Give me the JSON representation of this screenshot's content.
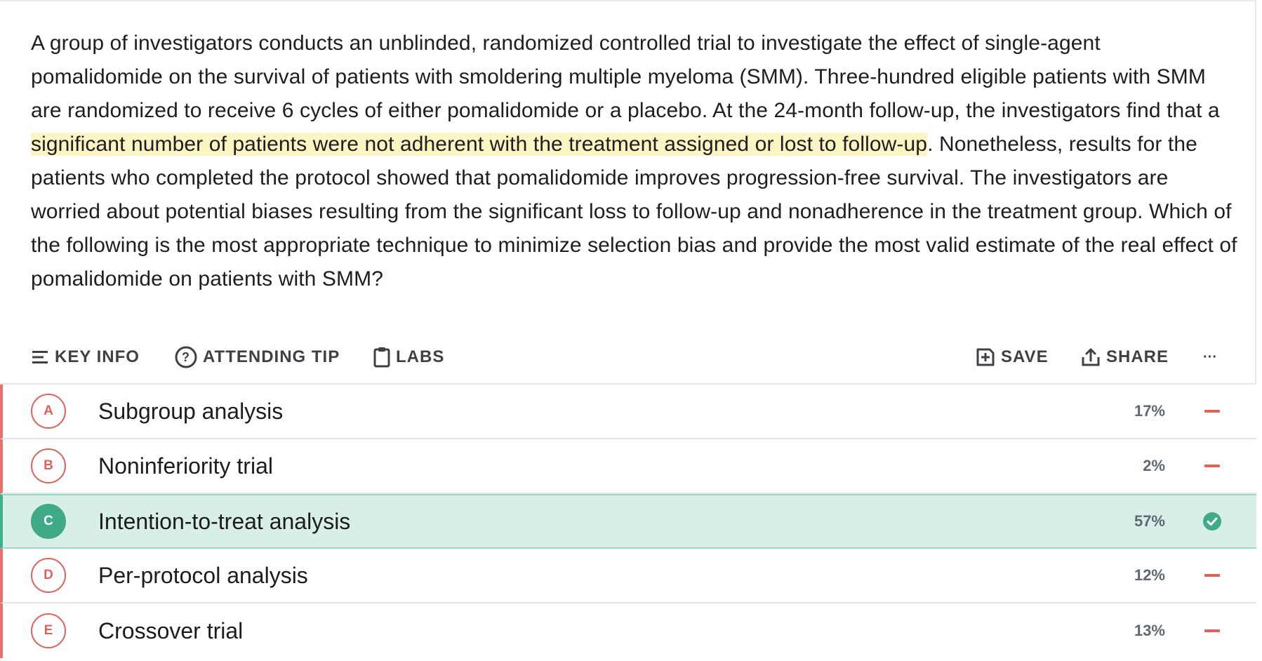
{
  "question": {
    "before": "A group of investigators conducts an unblinded, randomized controlled trial to investigate the effect of single-agent pomalidomide on the survival of patients with smoldering multiple myeloma (SMM). Three-hundred eligible patients with SMM are randomized to receive 6 cycles of either pomalidomide or a placebo. At the 24-month follow-up, the investigators find that a ",
    "highlight": "significant number of patients were not adherent with the treatment assigned or lost to follow-up",
    "after": ". Nonetheless, results for the patients who completed the protocol showed that pomalidomide improves progression-free survival. The investigators are worried about potential biases resulting from the significant loss to follow-up and nonadherence in the treatment group. Which of the following is the most appropriate technique to minimize selection bias and provide the most valid estimate of the real effect of pomalidomide on patients with SMM?",
    "highlight_color": "#fbf4c3"
  },
  "toolbar": {
    "key_info": {
      "label": "KEY INFO",
      "icon": "list-icon"
    },
    "attending_tip": {
      "label": "ATTENDING TIP",
      "icon": "question-circle-icon"
    },
    "labs": {
      "label": "LABS",
      "icon": "clipboard-icon"
    },
    "save": {
      "label": "SAVE",
      "icon": "save-plus-icon"
    },
    "share": {
      "label": "SHARE",
      "icon": "share-upload-icon"
    },
    "more": {
      "label": "···",
      "icon": "more-dots-icon"
    }
  },
  "answers": [
    {
      "letter": "A",
      "text": "Subgroup analysis",
      "percent": "17%",
      "status": "incorrect"
    },
    {
      "letter": "B",
      "text": "Noninferiority trial",
      "percent": "2%",
      "status": "incorrect"
    },
    {
      "letter": "C",
      "text": "Intention-to-treat analysis",
      "percent": "57%",
      "status": "correct"
    },
    {
      "letter": "D",
      "text": "Per-protocol analysis",
      "percent": "12%",
      "status": "incorrect"
    },
    {
      "letter": "E",
      "text": "Crossover trial",
      "percent": "13%",
      "status": "incorrect"
    }
  ],
  "colors": {
    "correct": "#3eaa88",
    "incorrect": "#e0615a",
    "correct_row_bg": "#d7efe6"
  }
}
